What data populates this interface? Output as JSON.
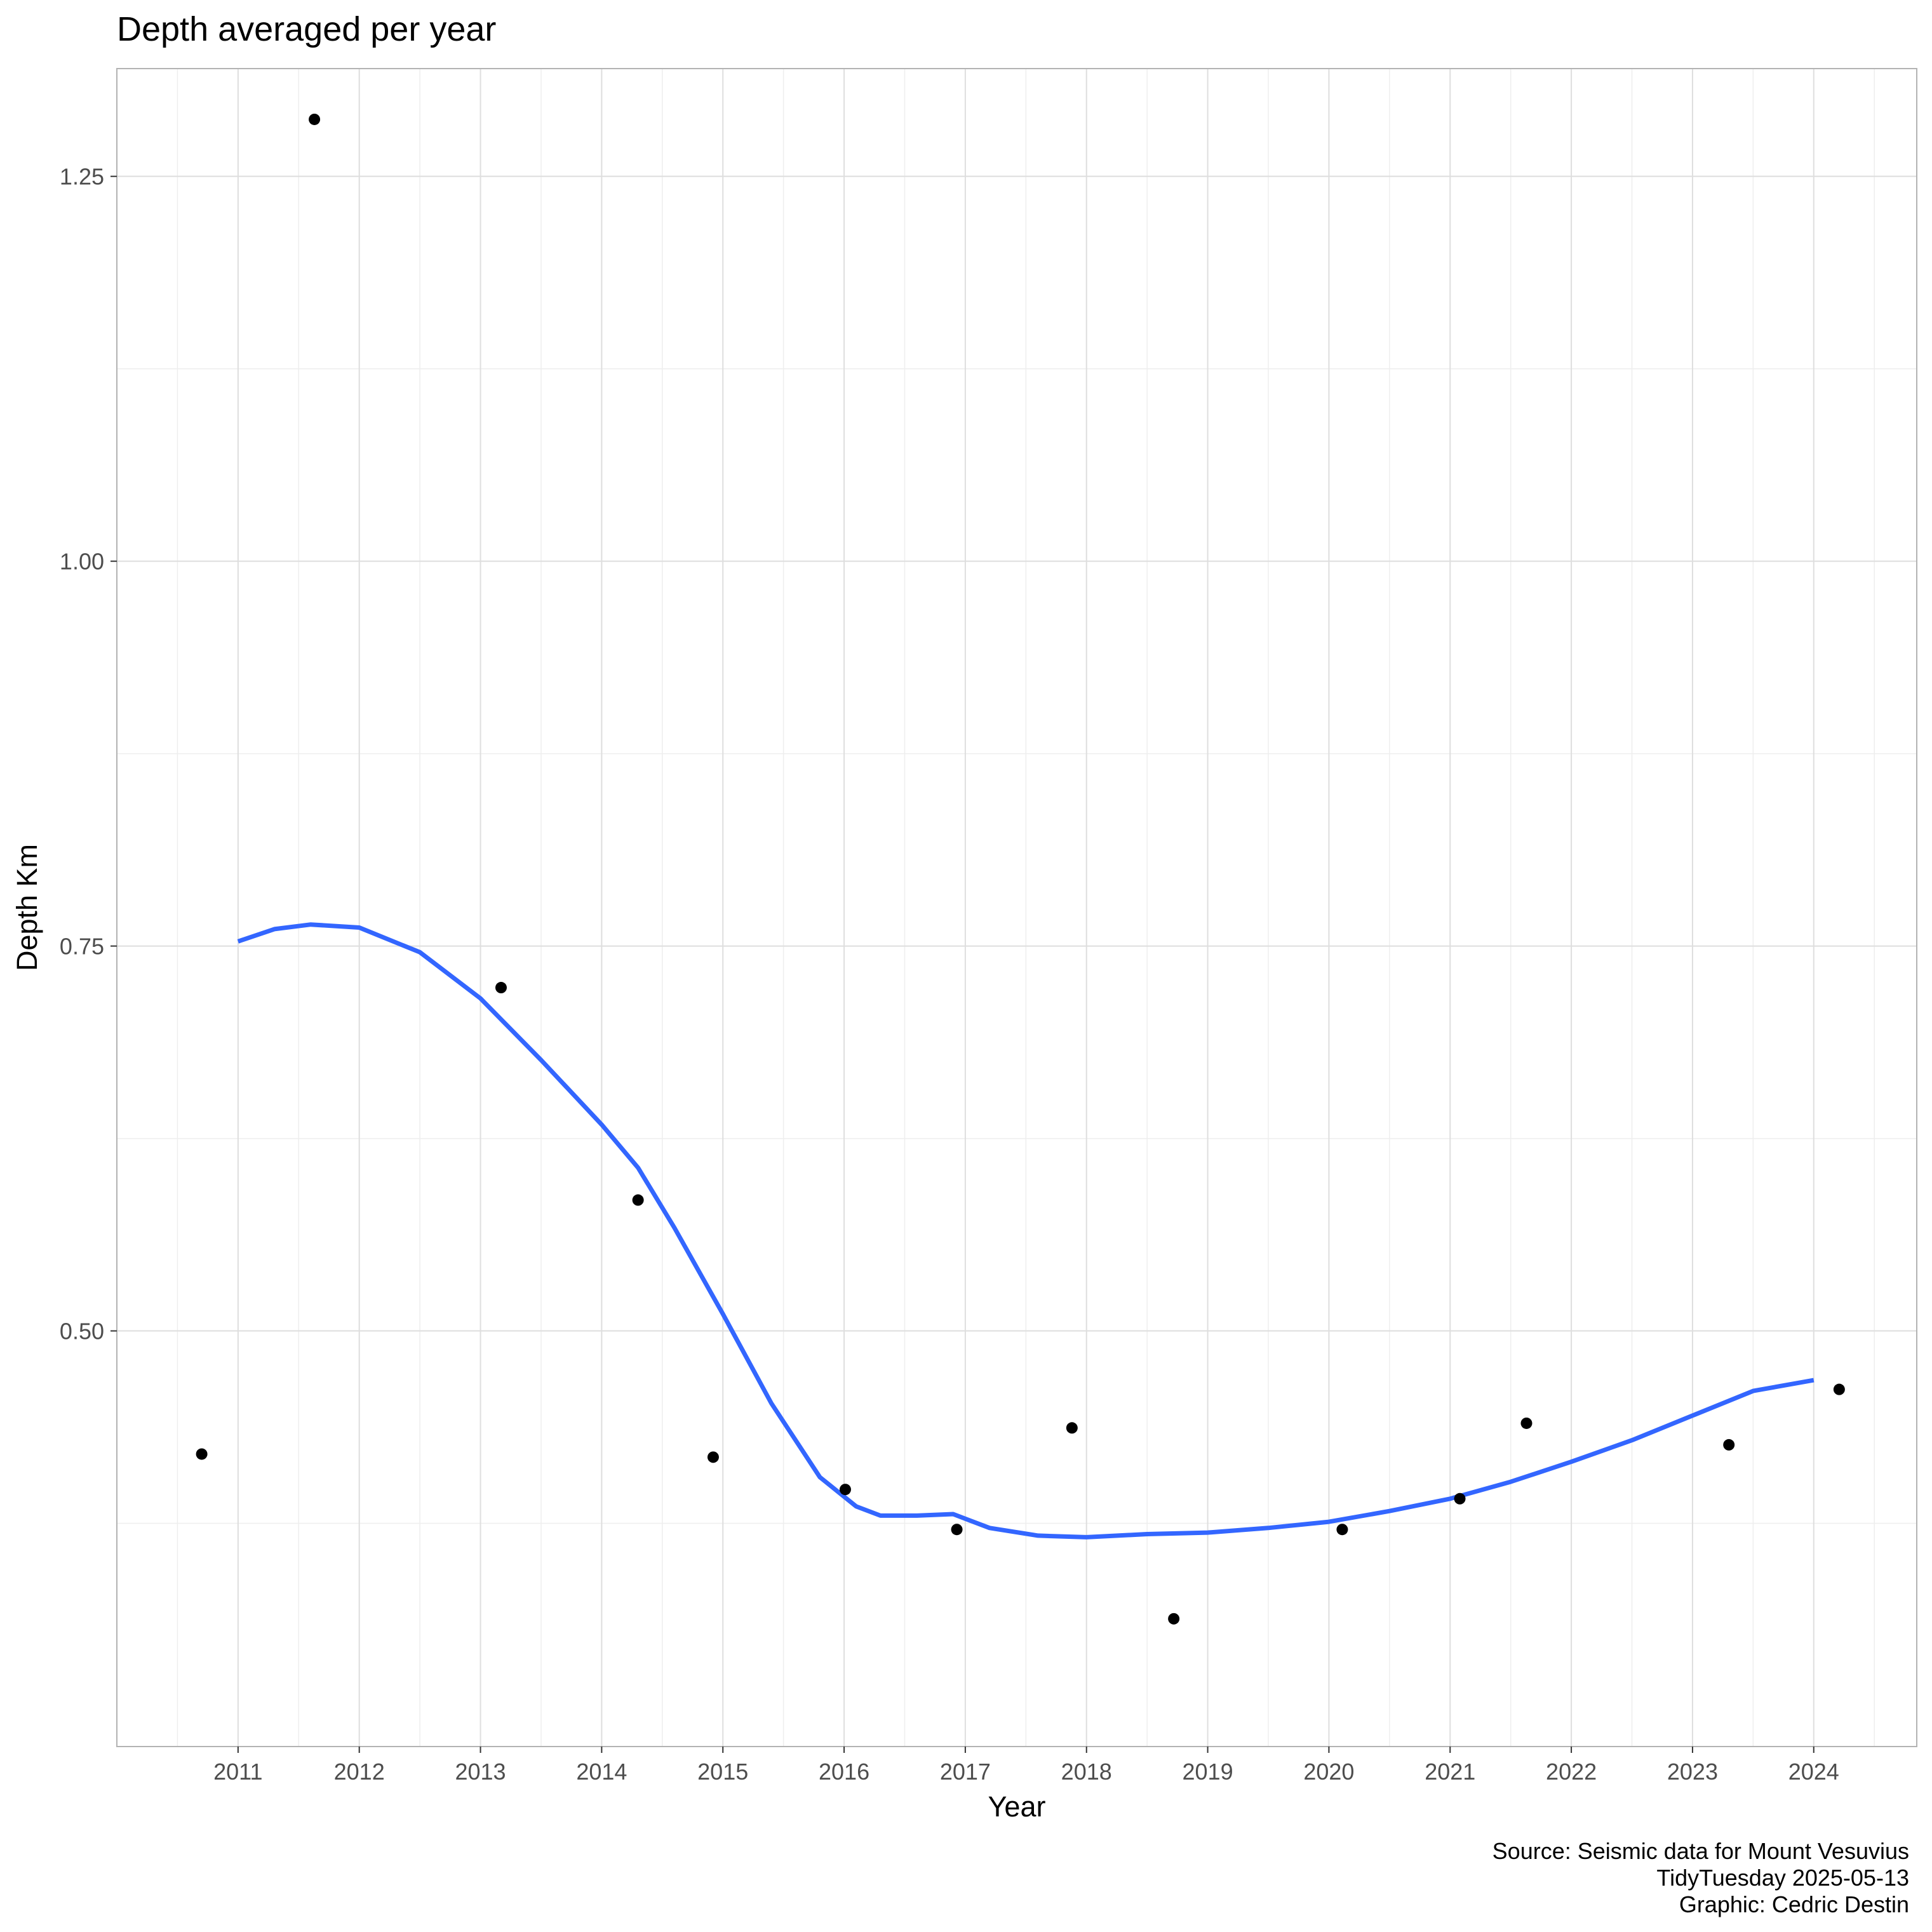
{
  "chart_data": {
    "type": "scatter",
    "title": "Depth averaged per year",
    "xlabel": "Year",
    "ylabel": "Depth Km",
    "x_ticks": [
      "2011",
      "2012",
      "2013",
      "2014",
      "2015",
      "2016",
      "2017",
      "2018",
      "2019",
      "2020",
      "2021",
      "2022",
      "2023",
      "2024"
    ],
    "y_ticks": [
      "0.50",
      "0.75",
      "1.00",
      "1.25"
    ],
    "xlim": [
      2010.0,
      2024.85
    ],
    "ylim": [
      0.23,
      1.32
    ],
    "grid": true,
    "series": [
      {
        "kind": "points",
        "color": "#000000",
        "x": [
          2010.7,
          2011.63,
          2013.17,
          2014.3,
          2014.92,
          2016.01,
          2016.93,
          2017.88,
          2018.72,
          2020.11,
          2021.08,
          2021.63,
          2023.3,
          2024.21
        ],
        "y": [
          0.42,
          1.287,
          0.723,
          0.585,
          0.418,
          0.397,
          0.371,
          0.437,
          0.313,
          0.371,
          0.391,
          0.44,
          0.426,
          0.462
        ]
      },
      {
        "kind": "smooth",
        "color": "#3366FF",
        "x": [
          2011.0,
          2011.3,
          2011.6,
          2012.0,
          2012.5,
          2013.0,
          2013.5,
          2014.0,
          2014.3,
          2014.6,
          2015.0,
          2015.4,
          2015.8,
          2016.1,
          2016.3,
          2016.6,
          2016.9,
          2017.2,
          2017.6,
          2018.0,
          2018.5,
          2019.0,
          2019.5,
          2020.0,
          2020.5,
          2021.0,
          2021.5,
          2022.0,
          2022.5,
          2023.0,
          2023.5,
          2024.0
        ],
        "y": [
          0.753,
          0.761,
          0.764,
          0.762,
          0.746,
          0.716,
          0.676,
          0.634,
          0.606,
          0.567,
          0.511,
          0.453,
          0.405,
          0.386,
          0.38,
          0.38,
          0.381,
          0.372,
          0.367,
          0.366,
          0.368,
          0.369,
          0.372,
          0.376,
          0.383,
          0.391,
          0.402,
          0.415,
          0.429,
          0.445,
          0.461,
          0.468
        ]
      }
    ]
  },
  "caption": {
    "line1": "Source: Seismic data for Mount Vesuvius",
    "line2": "TidyTuesday 2025-05-13",
    "line3": "Graphic: Cedric Destin"
  },
  "colors": {
    "panel_border": "#b3b3b3",
    "grid_major": "#dedede",
    "grid_minor": "#eeeeee",
    "smooth_line": "#3366FF",
    "point": "#000000"
  }
}
